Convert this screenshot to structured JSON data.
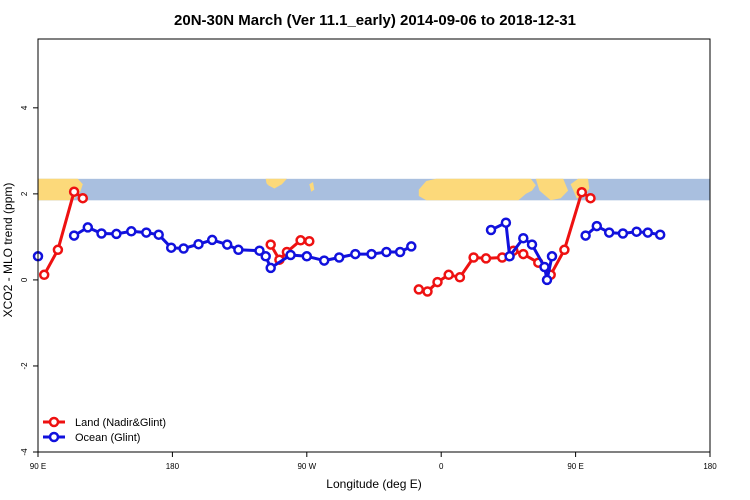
{
  "chart_data": {
    "type": "line",
    "title": "20N-30N March (Ver 11.1_early)   2014-09-06 to 2018-12-31",
    "xlabel": "Longitude (deg E)",
    "ylabel": "XCO2 - MLO trend (ppm)",
    "xlim": [
      -90,
      180
    ],
    "ylim": [
      -4.0,
      5.6
    ],
    "xticks": [
      {
        "value": -90,
        "label": "90 E"
      },
      {
        "value": -36,
        "label": "180"
      },
      {
        "value": 18,
        "label": "90 W"
      },
      {
        "value": 72,
        "label": "0"
      },
      {
        "value": 126,
        "label": "90 E"
      },
      {
        "value": 180,
        "label": "180"
      }
    ],
    "yticks": [
      {
        "value": -4,
        "label": "-4"
      },
      {
        "value": -2,
        "label": "-2"
      },
      {
        "value": 0,
        "label": "0"
      },
      {
        "value": 2,
        "label": "2"
      },
      {
        "value": 4,
        "label": "4"
      }
    ],
    "grid": false,
    "legend_position": "bottom-left",
    "map_band": {
      "ymin": 1.85,
      "ymax": 2.35,
      "ocean_color": "#a9bfdf",
      "land_color": "#fcd97a"
    },
    "series": [
      {
        "name": "Land (Nadir&Glint)",
        "color": "#ee1111",
        "segments": [
          [
            [
              -87.5,
              0.12
            ],
            [
              -82.0,
              0.7
            ],
            [
              -75.5,
              2.05
            ],
            [
              -72.0,
              1.9
            ]
          ],
          [
            [
              3.5,
              0.82
            ],
            [
              7.0,
              0.47
            ],
            [
              10.0,
              0.65
            ],
            [
              15.5,
              0.92
            ],
            [
              19.0,
              0.9
            ]
          ],
          [
            [
              63.0,
              -0.22
            ],
            [
              66.5,
              -0.27
            ],
            [
              70.5,
              -0.05
            ],
            [
              75.0,
              0.12
            ],
            [
              79.5,
              0.06
            ],
            [
              85.0,
              0.52
            ],
            [
              90.0,
              0.5
            ],
            [
              96.5,
              0.52
            ],
            [
              101.0,
              0.68
            ],
            [
              105.0,
              0.6
            ],
            [
              111.0,
              0.4
            ],
            [
              116.0,
              0.12
            ],
            [
              121.5,
              0.7
            ],
            [
              128.5,
              2.04
            ],
            [
              132.0,
              1.9
            ]
          ]
        ]
      },
      {
        "name": "Ocean (Glint)",
        "color": "#1111dd",
        "segments": [
          [
            [
              -90.0,
              0.55
            ]
          ],
          [
            [
              -75.5,
              1.03
            ],
            [
              -70.0,
              1.22
            ],
            [
              -64.5,
              1.08
            ],
            [
              -58.5,
              1.07
            ],
            [
              -52.5,
              1.13
            ],
            [
              -46.5,
              1.1
            ],
            [
              -41.5,
              1.05
            ],
            [
              -36.5,
              0.75
            ],
            [
              -31.5,
              0.73
            ],
            [
              -25.5,
              0.83
            ],
            [
              -20.0,
              0.93
            ],
            [
              -14.0,
              0.82
            ],
            [
              -9.5,
              0.7
            ],
            [
              -1.0,
              0.68
            ],
            [
              1.5,
              0.55
            ],
            [
              3.5,
              0.28
            ],
            [
              11.5,
              0.58
            ],
            [
              18.0,
              0.55
            ],
            [
              25.0,
              0.45
            ],
            [
              31.0,
              0.52
            ],
            [
              37.5,
              0.6
            ],
            [
              44.0,
              0.6
            ],
            [
              50.0,
              0.65
            ],
            [
              55.5,
              0.65
            ],
            [
              60.0,
              0.78
            ]
          ],
          [
            [
              92.0,
              1.16
            ],
            [
              98.0,
              1.33
            ],
            [
              99.5,
              0.55
            ],
            [
              105.0,
              0.97
            ],
            [
              108.5,
              0.82
            ],
            [
              113.5,
              0.3
            ],
            [
              114.5,
              0.0
            ],
            [
              116.5,
              0.55
            ]
          ],
          [
            [
              130.0,
              1.03
            ],
            [
              134.5,
              1.25
            ],
            [
              139.5,
              1.1
            ],
            [
              145.0,
              1.08
            ],
            [
              150.5,
              1.12
            ],
            [
              155.0,
              1.1
            ],
            [
              160.0,
              1.05
            ]
          ]
        ]
      }
    ]
  }
}
